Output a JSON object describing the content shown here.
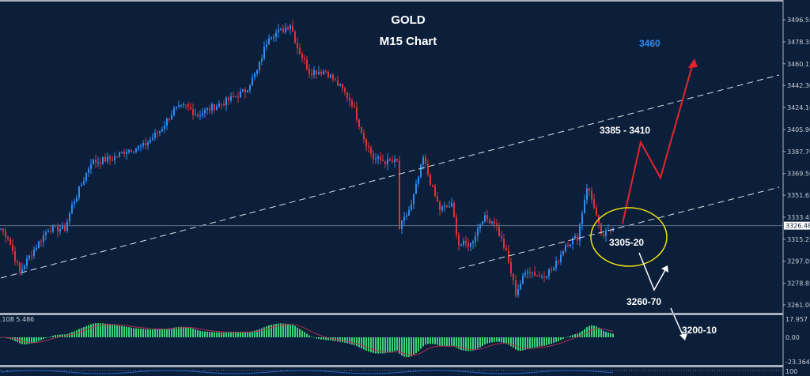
{
  "chart_data": {
    "type": "candlestick",
    "title": "GOLD",
    "subtitle": "M15 Chart",
    "colors": {
      "background": "#0b1f3b",
      "bull": "#2f8cf0",
      "bear": "#e0303a",
      "macd_hist": "#3cd27a",
      "macd_signal": "#b0304a",
      "projection_up": "#e8242b",
      "projection_down": "#ffffff",
      "zone": "#f1e20e",
      "target_label": "#2f8cf0"
    },
    "y_axis": {
      "range": [
        3255,
        3505
      ],
      "ticks": [
        "3496.55",
        "3478.35",
        "3460.15",
        "3442.30",
        "3424.10",
        "3405.90",
        "3387.70",
        "3369.50",
        "3351.65",
        "3333.45",
        "3315.25",
        "3297.05",
        "3278.85",
        "3261.00"
      ]
    },
    "current_price": "3326.48",
    "price_path": [
      [
        0,
        3324
      ],
      [
        3,
        3317
      ],
      [
        8,
        3288
      ],
      [
        13,
        3304
      ],
      [
        20,
        3324
      ],
      [
        27,
        3324
      ],
      [
        30,
        3343
      ],
      [
        33,
        3356
      ],
      [
        38,
        3379
      ],
      [
        47,
        3382
      ],
      [
        53,
        3389
      ],
      [
        60,
        3392
      ],
      [
        67,
        3405
      ],
      [
        73,
        3422
      ],
      [
        78,
        3425
      ],
      [
        83,
        3418
      ],
      [
        90,
        3425
      ],
      [
        97,
        3431
      ],
      [
        103,
        3438
      ],
      [
        108,
        3454
      ],
      [
        113,
        3484
      ],
      [
        118,
        3487
      ],
      [
        122,
        3493
      ],
      [
        125,
        3474
      ],
      [
        130,
        3454
      ],
      [
        137,
        3454
      ],
      [
        143,
        3441
      ],
      [
        148,
        3428
      ],
      [
        153,
        3399
      ],
      [
        157,
        3382
      ],
      [
        163,
        3379
      ],
      [
        167,
        3379
      ],
      [
        168,
        3324
      ],
      [
        173,
        3343
      ],
      [
        178,
        3382
      ],
      [
        182,
        3356
      ],
      [
        185,
        3340
      ],
      [
        190,
        3343
      ],
      [
        193,
        3311
      ],
      [
        198,
        3311
      ],
      [
        203,
        3333
      ],
      [
        208,
        3330
      ],
      [
        213,
        3304
      ],
      [
        217,
        3271
      ],
      [
        222,
        3291
      ],
      [
        227,
        3284
      ],
      [
        233,
        3291
      ],
      [
        238,
        3311
      ],
      [
        243,
        3317
      ],
      [
        247,
        3359
      ],
      [
        250,
        3343
      ],
      [
        253,
        3317
      ],
      [
        258,
        3324
      ]
    ],
    "trendlines": [
      {
        "style": "dashed",
        "from": [
          0,
          3283.2
        ],
        "to": [
          328,
          3450.9
        ]
      },
      {
        "style": "dashed",
        "from": [
          193,
          3291.0
        ],
        "to": [
          328,
          3358.2
        ]
      }
    ],
    "annotations": [
      {
        "text": "3460",
        "color": "#2f8cf0"
      },
      {
        "text": "3385 - 3410",
        "color": "#ffffff"
      },
      {
        "text": "3305-20",
        "color": "#ffffff"
      },
      {
        "text": "3260-70",
        "color": "#ffffff"
      },
      {
        "text": "3200-10",
        "color": "#ffffff"
      }
    ],
    "macd": {
      "label": ".108 5.486",
      "ticks": [
        "17.957",
        "0.00",
        "-23.364"
      ]
    },
    "bottom_indicator": {
      "ticks": [
        "100"
      ]
    }
  }
}
